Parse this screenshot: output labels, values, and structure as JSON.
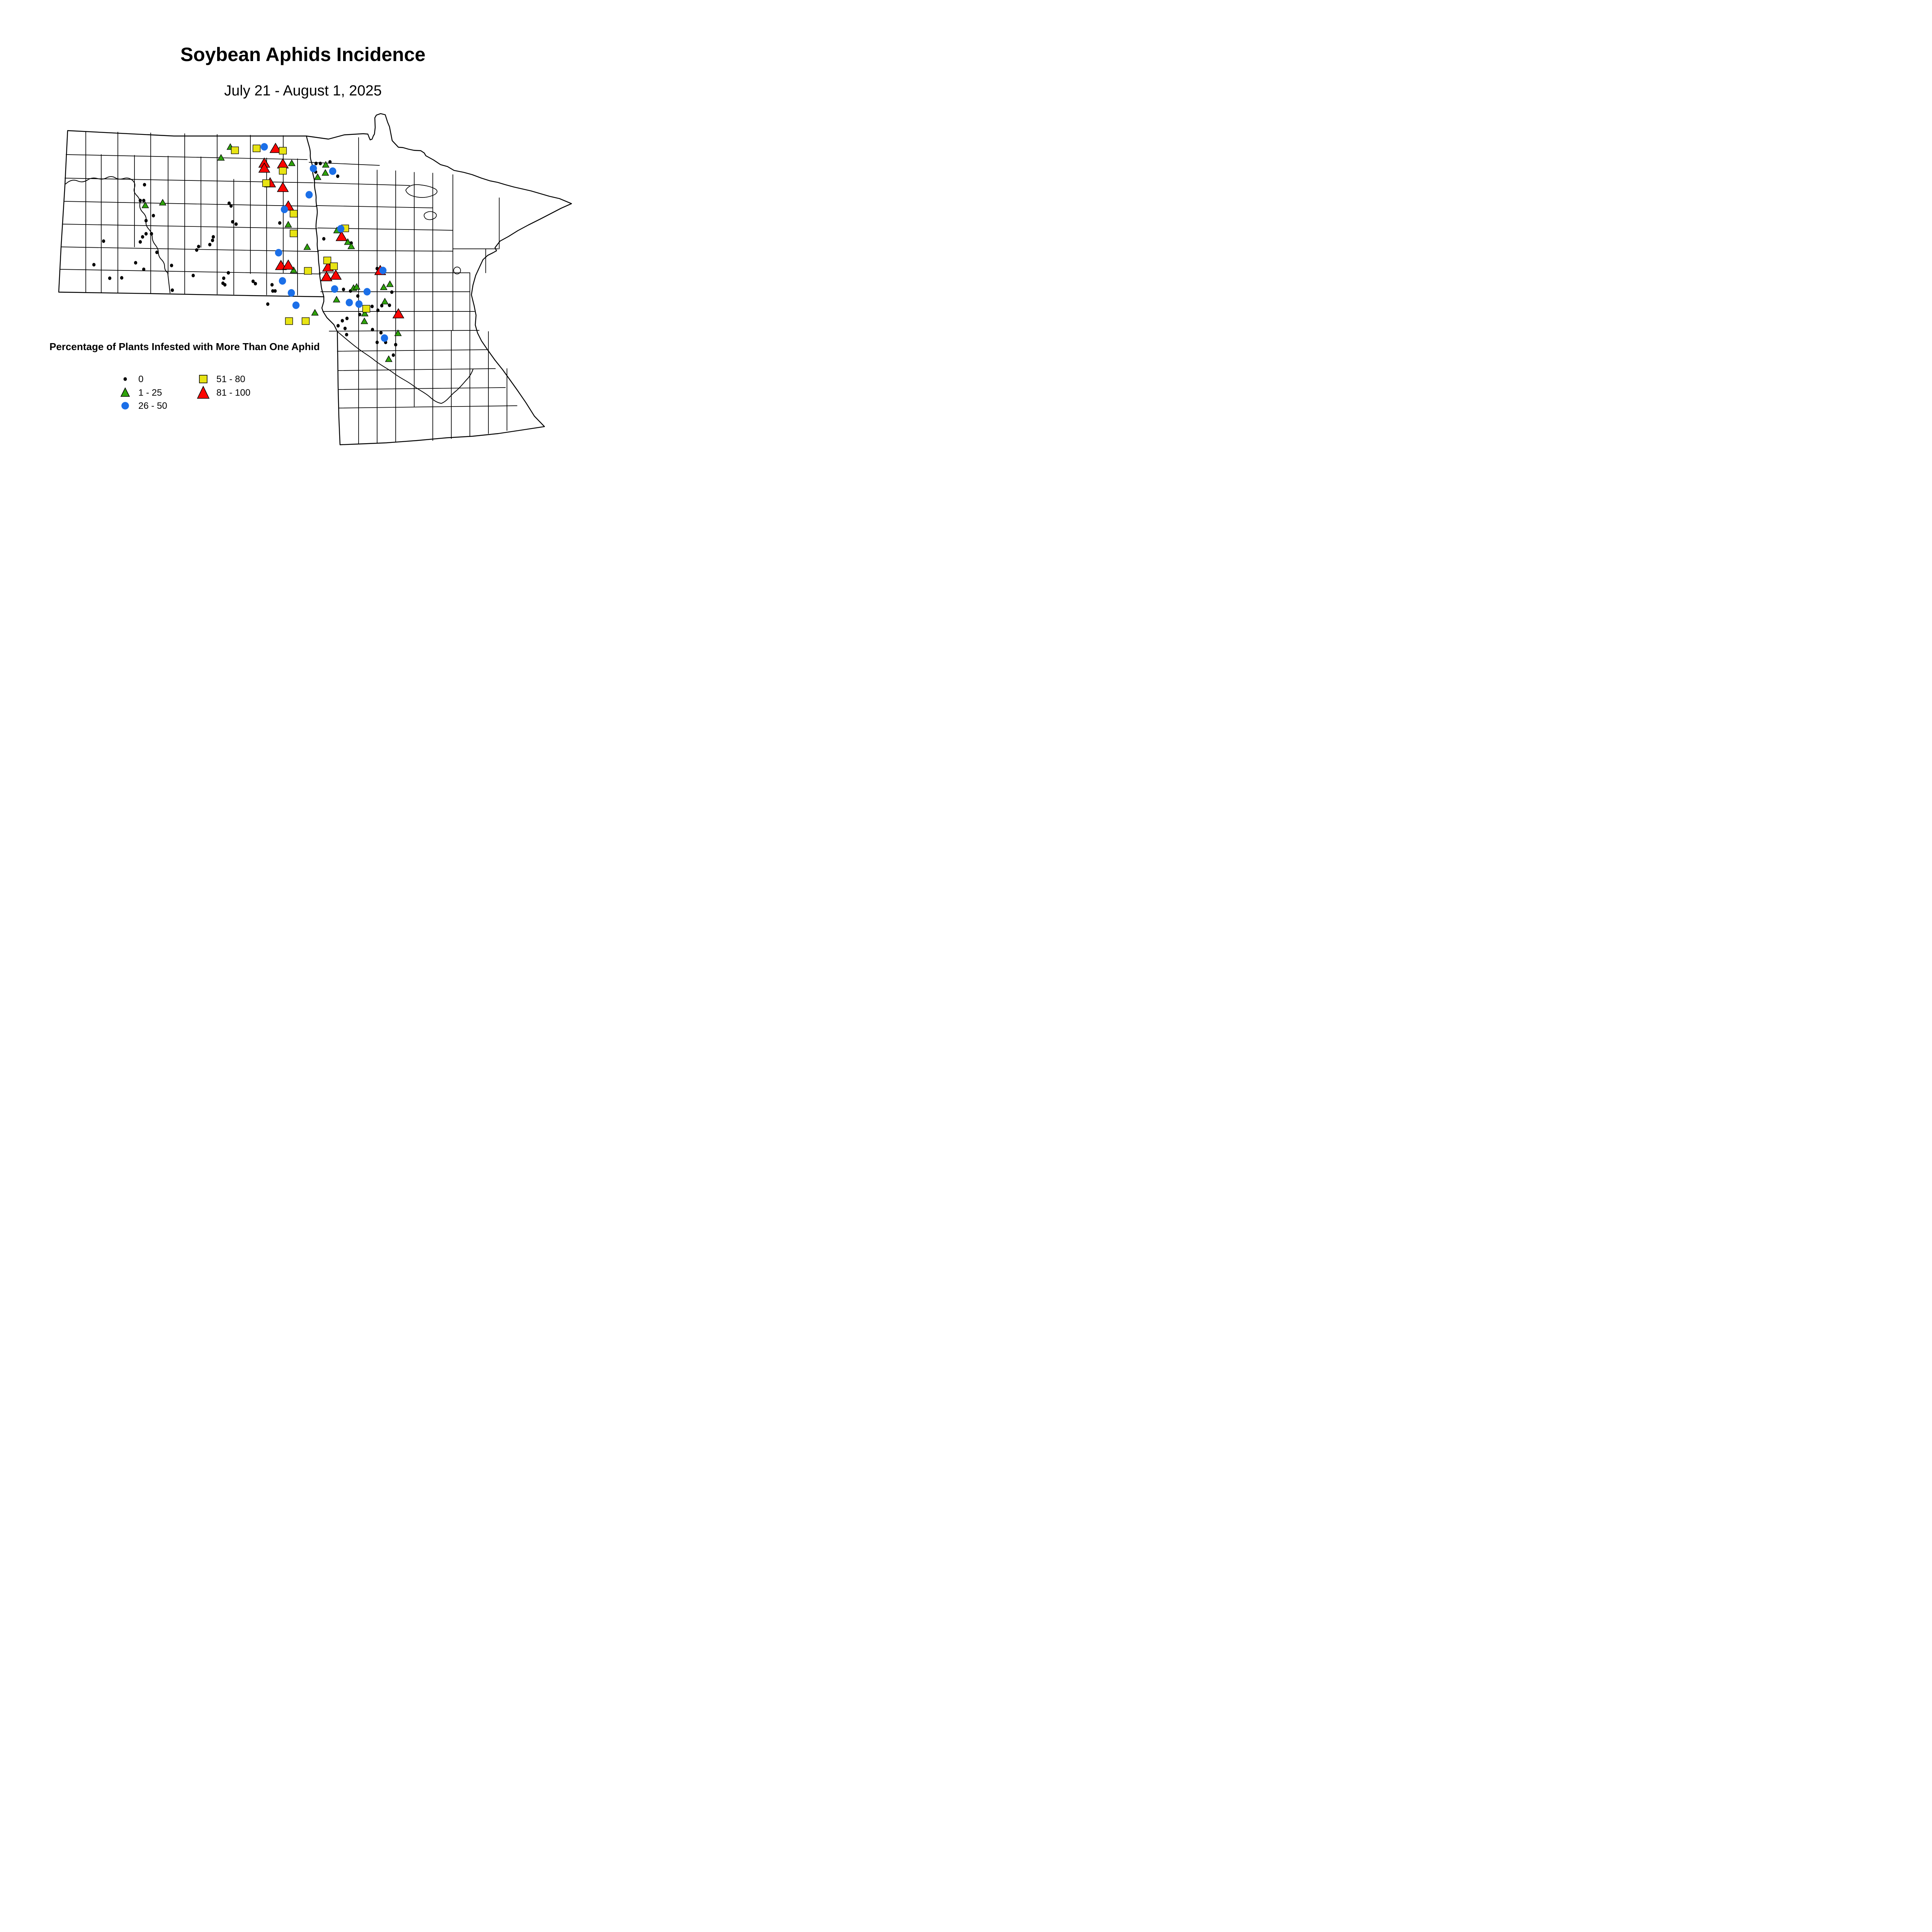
{
  "title": "Soybean Aphids Incidence",
  "subtitle": "July 21 - August 1, 2025",
  "legend": {
    "title": "Percentage of Plants Infested with More Than One Aphid",
    "items": [
      {
        "id": "dot",
        "label": "0"
      },
      {
        "id": "green-triangle",
        "label": "1 - 25"
      },
      {
        "id": "blue-circle",
        "label": "26 - 50"
      },
      {
        "id": "yellow-square",
        "label": "51 - 80"
      },
      {
        "id": "red-triangle",
        "label": "81 - 100"
      }
    ]
  },
  "colors": {
    "dot": "#000000",
    "green": "#2FA30C",
    "blue": "#1B6FE8",
    "yellow": "#E8E414",
    "red": "#FB0501",
    "outline": "#000000"
  },
  "chart_data": {
    "type": "map-symbols",
    "region": "North Dakota and Minnesota counties",
    "value_field": "Percent of plants infested with more than one aphid",
    "classes": [
      "0",
      "1 - 25",
      "26 - 50",
      "51 - 80",
      "81 - 100"
    ]
  },
  "map": {
    "markers": {
      "dot": [
        [
          374,
          478
        ],
        [
          363,
          519
        ],
        [
          372,
          519
        ],
        [
          397,
          558
        ],
        [
          378,
          571
        ],
        [
          378,
          605
        ],
        [
          392,
          605
        ],
        [
          369,
          613
        ],
        [
          363,
          626
        ],
        [
          268,
          624
        ],
        [
          406,
          653
        ],
        [
          444,
          687
        ],
        [
          243,
          685
        ],
        [
          351,
          680
        ],
        [
          372,
          697
        ],
        [
          284,
          720
        ],
        [
          315,
          719
        ],
        [
          500,
          713
        ],
        [
          446,
          751
        ],
        [
          593,
          526
        ],
        [
          598,
          533
        ],
        [
          602,
          574
        ],
        [
          611,
          580
        ],
        [
          552,
          613
        ],
        [
          550,
          622
        ],
        [
          543,
          633
        ],
        [
          514,
          638
        ],
        [
          509,
          647
        ],
        [
          591,
          706
        ],
        [
          579,
          720
        ],
        [
          577,
          733
        ],
        [
          582,
          737
        ],
        [
          655,
          728
        ],
        [
          661,
          734
        ],
        [
          724,
          577
        ],
        [
          704,
          737
        ],
        [
          706,
          753
        ],
        [
          712,
          753
        ],
        [
          693,
          787
        ],
        [
          818,
          423
        ],
        [
          829,
          423
        ],
        [
          854,
          419
        ],
        [
          817,
          445
        ],
        [
          874,
          456
        ],
        [
          838,
          618
        ],
        [
          909,
          629
        ],
        [
          976,
          695
        ],
        [
          889,
          749
        ],
        [
          907,
          753
        ],
        [
          926,
          766
        ],
        [
          1014,
          756
        ],
        [
          963,
          793
        ],
        [
          988,
          791
        ],
        [
          1008,
          790
        ],
        [
          978,
          803
        ],
        [
          931,
          814
        ],
        [
          898,
          824
        ],
        [
          886,
          830
        ],
        [
          875,
          843
        ],
        [
          893,
          850
        ],
        [
          964,
          853
        ],
        [
          986,
          861
        ],
        [
          897,
          866
        ],
        [
          998,
          886
        ],
        [
          976,
          886
        ],
        [
          1024,
          892
        ],
        [
          1018,
          919
        ]
      ],
      "green": [
        [
          376,
          533
        ],
        [
          421,
          526
        ],
        [
          596,
          382
        ],
        [
          572,
          410
        ],
        [
          755,
          424
        ],
        [
          746,
          583
        ],
        [
          795,
          641
        ],
        [
          760,
          701
        ],
        [
          815,
          811
        ],
        [
          843,
          428
        ],
        [
          842,
          449
        ],
        [
          822,
          460
        ],
        [
          872,
          598
        ],
        [
          900,
          628
        ],
        [
          909,
          639
        ],
        [
          871,
          777
        ],
        [
          915,
          747
        ],
        [
          923,
          744
        ],
        [
          993,
          745
        ],
        [
          1009,
          737
        ],
        [
          996,
          782
        ],
        [
          944,
          813
        ],
        [
          943,
          833
        ],
        [
          1030,
          864
        ],
        [
          1006,
          931
        ]
      ],
      "red": [
        [
          713,
          386
        ],
        [
          684,
          424
        ],
        [
          684,
          437
        ],
        [
          732,
          426
        ],
        [
          699,
          475
        ],
        [
          732,
          487
        ],
        [
          746,
          535
        ],
        [
          727,
          689
        ],
        [
          746,
          688
        ],
        [
          849,
          693
        ],
        [
          845,
          718
        ],
        [
          869,
          714
        ],
        [
          884,
          614
        ],
        [
          984,
          702
        ],
        [
          1031,
          814
        ]
      ],
      "yellow": [
        [
          608,
          389
        ],
        [
          664,
          384
        ],
        [
          732,
          390
        ],
        [
          732,
          442
        ],
        [
          689,
          474
        ],
        [
          760,
          553
        ],
        [
          760,
          604
        ],
        [
          797,
          701
        ],
        [
          748,
          831
        ],
        [
          791,
          831
        ],
        [
          847,
          674
        ],
        [
          864,
          689
        ],
        [
          893,
          591
        ],
        [
          948,
          799
        ]
      ],
      "blue": [
        [
          684,
          380
        ],
        [
          811,
          436
        ],
        [
          861,
          443
        ],
        [
          800,
          504
        ],
        [
          736,
          542
        ],
        [
          721,
          654
        ],
        [
          731,
          727
        ],
        [
          754,
          758
        ],
        [
          766,
          790
        ],
        [
          882,
          592
        ],
        [
          866,
          748
        ],
        [
          950,
          755
        ],
        [
          904,
          783
        ],
        [
          929,
          787
        ],
        [
          995,
          875
        ],
        [
          991,
          700
        ]
      ]
    }
  }
}
